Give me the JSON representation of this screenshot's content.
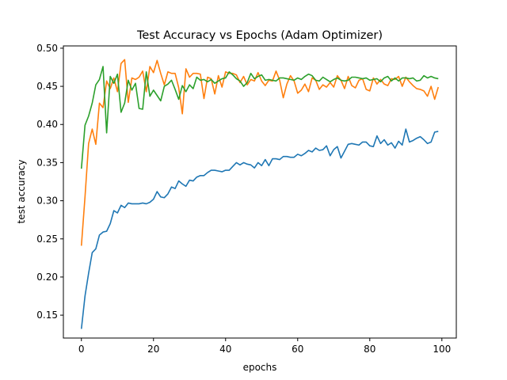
{
  "chart_data": {
    "type": "line",
    "title": "Test Accuracy vs Epochs (Adam Optimizer)",
    "xlabel": "epochs",
    "ylabel": "test accuracy",
    "xlim": [
      -5,
      104
    ],
    "ylim": [
      0.12,
      0.503
    ],
    "xticks": [
      0,
      20,
      40,
      60,
      80,
      100
    ],
    "yticks": [
      0.15,
      0.2,
      0.25,
      0.3,
      0.35,
      0.4,
      0.45,
      0.5
    ],
    "grid": false,
    "legend": "none",
    "series": [
      {
        "color": "#1f77b4",
        "x": [
          0,
          1,
          2,
          3,
          4,
          5,
          6,
          7,
          8,
          9,
          10,
          11,
          12,
          13,
          14,
          15,
          16,
          17,
          18,
          19,
          20,
          21,
          22,
          23,
          24,
          25,
          26,
          27,
          28,
          29,
          30,
          31,
          32,
          33,
          34,
          35,
          36,
          37,
          38,
          39,
          40,
          41,
          42,
          43,
          44,
          45,
          46,
          47,
          48,
          49,
          50,
          51,
          52,
          53,
          54,
          55,
          56,
          57,
          58,
          59,
          60,
          61,
          62,
          63,
          64,
          65,
          66,
          67,
          68,
          69,
          70,
          71,
          72,
          73,
          74,
          75,
          76,
          77,
          78,
          79,
          80,
          81,
          82,
          83,
          84,
          85,
          86,
          87,
          88,
          89,
          90,
          91,
          92,
          93,
          94,
          95,
          96,
          97,
          98,
          99
        ],
        "values": [
          0.132,
          0.175,
          0.205,
          0.232,
          0.237,
          0.255,
          0.259,
          0.26,
          0.27,
          0.287,
          0.284,
          0.294,
          0.291,
          0.297,
          0.296,
          0.296,
          0.296,
          0.297,
          0.296,
          0.298,
          0.302,
          0.312,
          0.305,
          0.304,
          0.309,
          0.318,
          0.316,
          0.326,
          0.322,
          0.319,
          0.327,
          0.326,
          0.331,
          0.333,
          0.333,
          0.337,
          0.34,
          0.34,
          0.339,
          0.338,
          0.34,
          0.34,
          0.345,
          0.35,
          0.347,
          0.35,
          0.348,
          0.347,
          0.343,
          0.35,
          0.346,
          0.354,
          0.346,
          0.355,
          0.355,
          0.354,
          0.358,
          0.358,
          0.357,
          0.357,
          0.361,
          0.359,
          0.362,
          0.366,
          0.364,
          0.369,
          0.366,
          0.367,
          0.372,
          0.359,
          0.367,
          0.371,
          0.356,
          0.365,
          0.374,
          0.375,
          0.374,
          0.373,
          0.377,
          0.377,
          0.372,
          0.371,
          0.385,
          0.375,
          0.38,
          0.373,
          0.376,
          0.369,
          0.378,
          0.373,
          0.394,
          0.377,
          0.379,
          0.382,
          0.384,
          0.38,
          0.375,
          0.377,
          0.39,
          0.391
        ]
      },
      {
        "color": "#ff7f0e",
        "x": [
          0,
          1,
          2,
          3,
          4,
          5,
          6,
          7,
          8,
          9,
          10,
          11,
          12,
          13,
          14,
          15,
          16,
          17,
          18,
          19,
          20,
          21,
          22,
          23,
          24,
          25,
          26,
          27,
          28,
          29,
          30,
          31,
          32,
          33,
          34,
          35,
          36,
          37,
          38,
          39,
          40,
          41,
          42,
          43,
          44,
          45,
          46,
          47,
          48,
          49,
          50,
          51,
          52,
          53,
          54,
          55,
          56,
          57,
          58,
          59,
          60,
          61,
          62,
          63,
          64,
          65,
          66,
          67,
          68,
          69,
          70,
          71,
          72,
          73,
          74,
          75,
          76,
          77,
          78,
          79,
          80,
          81,
          82,
          83,
          84,
          85,
          86,
          87,
          88,
          89,
          90,
          91,
          92,
          93,
          94,
          95,
          96,
          97,
          98,
          99
        ],
        "values": [
          0.241,
          0.305,
          0.375,
          0.394,
          0.374,
          0.428,
          0.422,
          0.457,
          0.447,
          0.461,
          0.443,
          0.48,
          0.485,
          0.429,
          0.461,
          0.459,
          0.462,
          0.47,
          0.443,
          0.476,
          0.468,
          0.484,
          0.467,
          0.452,
          0.469,
          0.467,
          0.467,
          0.448,
          0.414,
          0.473,
          0.462,
          0.467,
          0.467,
          0.466,
          0.434,
          0.462,
          0.46,
          0.44,
          0.464,
          0.449,
          0.469,
          0.467,
          0.467,
          0.465,
          0.455,
          0.463,
          0.452,
          0.459,
          0.457,
          0.468,
          0.457,
          0.451,
          0.458,
          0.457,
          0.47,
          0.458,
          0.435,
          0.453,
          0.464,
          0.457,
          0.441,
          0.445,
          0.453,
          0.443,
          0.461,
          0.458,
          0.446,
          0.452,
          0.449,
          0.455,
          0.449,
          0.464,
          0.458,
          0.447,
          0.463,
          0.451,
          0.448,
          0.458,
          0.46,
          0.446,
          0.444,
          0.461,
          0.453,
          0.459,
          0.453,
          0.451,
          0.46,
          0.459,
          0.463,
          0.45,
          0.462,
          0.456,
          0.451,
          0.447,
          0.446,
          0.444,
          0.437,
          0.45,
          0.433,
          0.449
        ]
      },
      {
        "color": "#2ca02c",
        "x": [
          0,
          1,
          2,
          3,
          4,
          5,
          6,
          7,
          8,
          9,
          10,
          11,
          12,
          13,
          14,
          15,
          16,
          17,
          18,
          19,
          20,
          21,
          22,
          23,
          24,
          25,
          26,
          27,
          28,
          29,
          30,
          31,
          32,
          33,
          34,
          35,
          36,
          37,
          38,
          39,
          40,
          41,
          42,
          43,
          44,
          45,
          46,
          47,
          48,
          49,
          50,
          51,
          52,
          53,
          54,
          55,
          56,
          57,
          58,
          59,
          60,
          61,
          62,
          63,
          64,
          65,
          66,
          67,
          68,
          69,
          70,
          71,
          72,
          73,
          74,
          75,
          76,
          77,
          78,
          79,
          80,
          81,
          82,
          83,
          84,
          85,
          86,
          87,
          88,
          89,
          90,
          91,
          92,
          93,
          94,
          95,
          96,
          97,
          98,
          99
        ],
        "values": [
          0.342,
          0.399,
          0.411,
          0.428,
          0.452,
          0.459,
          0.476,
          0.389,
          0.463,
          0.454,
          0.466,
          0.416,
          0.428,
          0.458,
          0.445,
          0.454,
          0.421,
          0.42,
          0.469,
          0.437,
          0.445,
          0.438,
          0.431,
          0.45,
          0.453,
          0.458,
          0.446,
          0.433,
          0.451,
          0.443,
          0.452,
          0.447,
          0.462,
          0.458,
          0.459,
          0.456,
          0.459,
          0.454,
          0.457,
          0.46,
          0.461,
          0.469,
          0.465,
          0.46,
          0.457,
          0.45,
          0.455,
          0.467,
          0.46,
          0.463,
          0.465,
          0.458,
          0.459,
          0.458,
          0.457,
          0.461,
          0.461,
          0.46,
          0.459,
          0.458,
          0.461,
          0.459,
          0.463,
          0.466,
          0.464,
          0.458,
          0.457,
          0.462,
          0.459,
          0.456,
          0.459,
          0.461,
          0.458,
          0.457,
          0.458,
          0.462,
          0.462,
          0.461,
          0.46,
          0.461,
          0.458,
          0.459,
          0.46,
          0.456,
          0.461,
          0.463,
          0.457,
          0.461,
          0.457,
          0.461,
          0.461,
          0.46,
          0.461,
          0.457,
          0.458,
          0.464,
          0.461,
          0.463,
          0.461,
          0.46
        ]
      }
    ]
  }
}
